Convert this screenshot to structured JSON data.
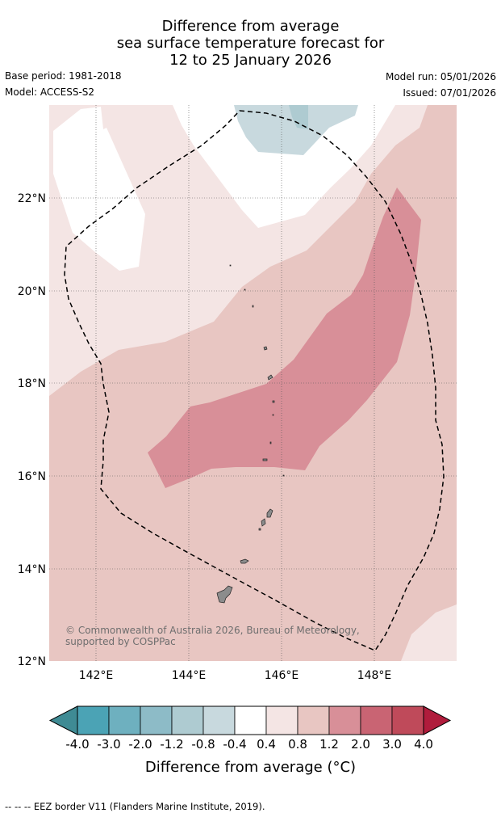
{
  "header": {
    "title_lines": [
      "Difference from average",
      "sea surface temperature forecast for",
      "12 to 25 January 2026"
    ],
    "base_period": "Base period: 1981-2018",
    "model": "Model: ACCESS-S2",
    "model_run": "Model run: 05/01/2026",
    "issued": "Issued: 07/01/2026"
  },
  "map": {
    "lat_labels": [
      "22°N",
      "20°N",
      "18°N",
      "16°N",
      "14°N",
      "12°N"
    ],
    "lon_labels": [
      "142°E",
      "144°E",
      "146°E",
      "148°E"
    ],
    "copyright": "© Commonwealth of Australia 2026, Bureau of Meteorology, supported by COSPPac",
    "land_color": "#8c8c8c",
    "eez_line_style": "dashed black"
  },
  "colorbar": {
    "labels": [
      "-4.0",
      "-3.0",
      "-2.0",
      "-1.2",
      "-0.8",
      "-0.4",
      "0.4",
      "0.8",
      "1.2",
      "2.0",
      "3.0",
      "4.0"
    ],
    "colors": [
      "#4ba3b5",
      "#6eb0bf",
      "#8dbbc7",
      "#aecbd1",
      "#c8d9de",
      "#ffffff",
      "#f4e5e4",
      "#e8c6c2",
      "#d88f98",
      "#c96473",
      "#bf4a5a"
    ],
    "under_color": "#3f8b94",
    "over_color": "#b01c3c",
    "title": "Difference from average (°C)"
  },
  "footnote": "--  --  -- EEZ border V11 (Flanders Marine Institute, 2019)."
}
